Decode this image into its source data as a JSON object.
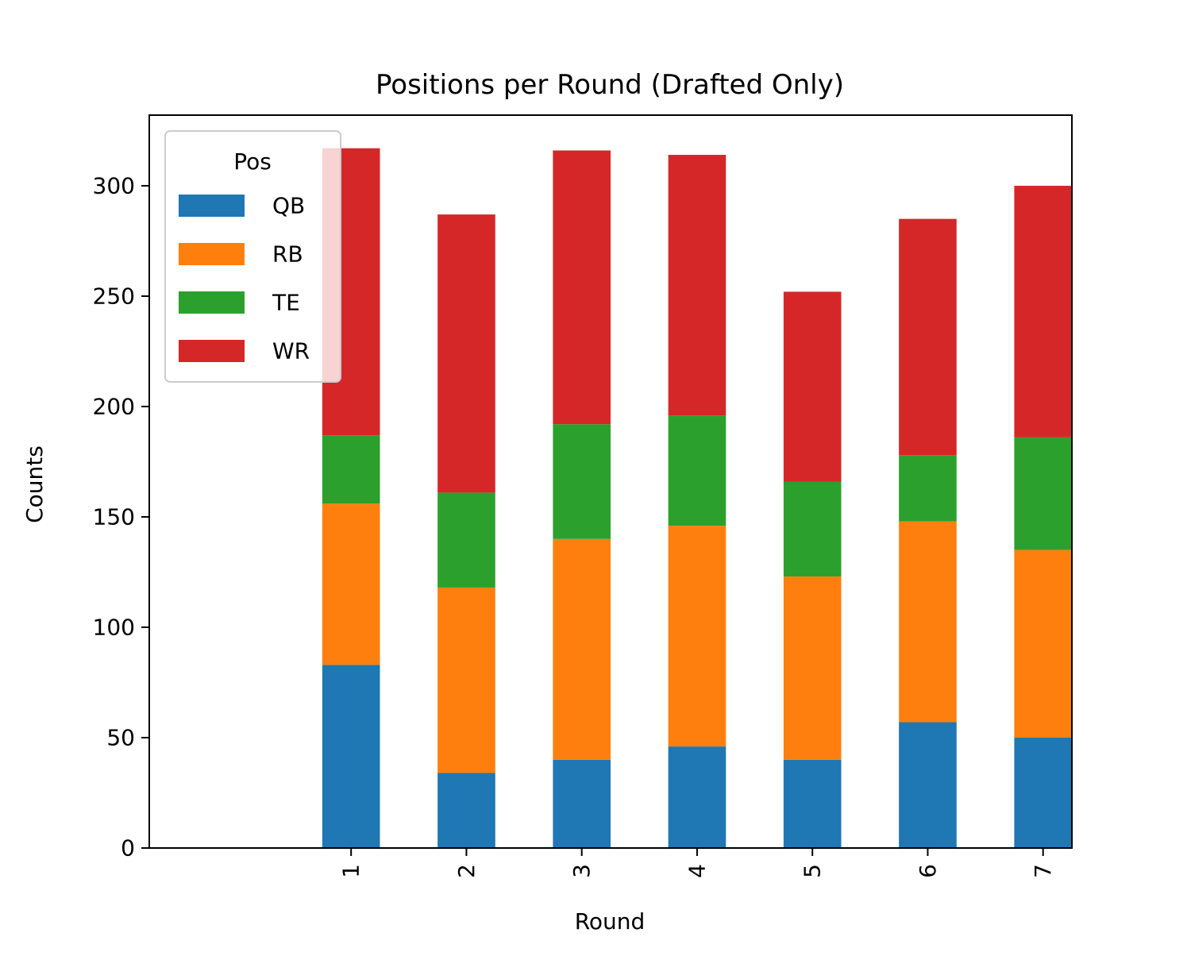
{
  "chart_data": {
    "type": "bar",
    "stacked": true,
    "title": "Positions per Round (Drafted Only)",
    "xlabel": "Round",
    "ylabel": "Counts",
    "categories": [
      "1",
      "2",
      "3",
      "4",
      "5",
      "6",
      "7"
    ],
    "ylim": [
      0,
      332
    ],
    "yticks": [
      0,
      50,
      100,
      150,
      200,
      250,
      300
    ],
    "grid": false,
    "legend": {
      "title": "Pos",
      "placement": "top-left"
    },
    "series": [
      {
        "name": "QB",
        "color": "#1f77b4",
        "values": [
          83,
          34,
          40,
          46,
          40,
          57,
          50
        ]
      },
      {
        "name": "RB",
        "color": "#ff7f0e",
        "values": [
          73,
          84,
          100,
          100,
          83,
          91,
          85
        ]
      },
      {
        "name": "TE",
        "color": "#2ca02c",
        "values": [
          31,
          43,
          52,
          50,
          43,
          30,
          51
        ]
      },
      {
        "name": "WR",
        "color": "#d62728",
        "values": [
          130,
          126,
          124,
          118,
          86,
          107,
          114
        ]
      }
    ]
  }
}
